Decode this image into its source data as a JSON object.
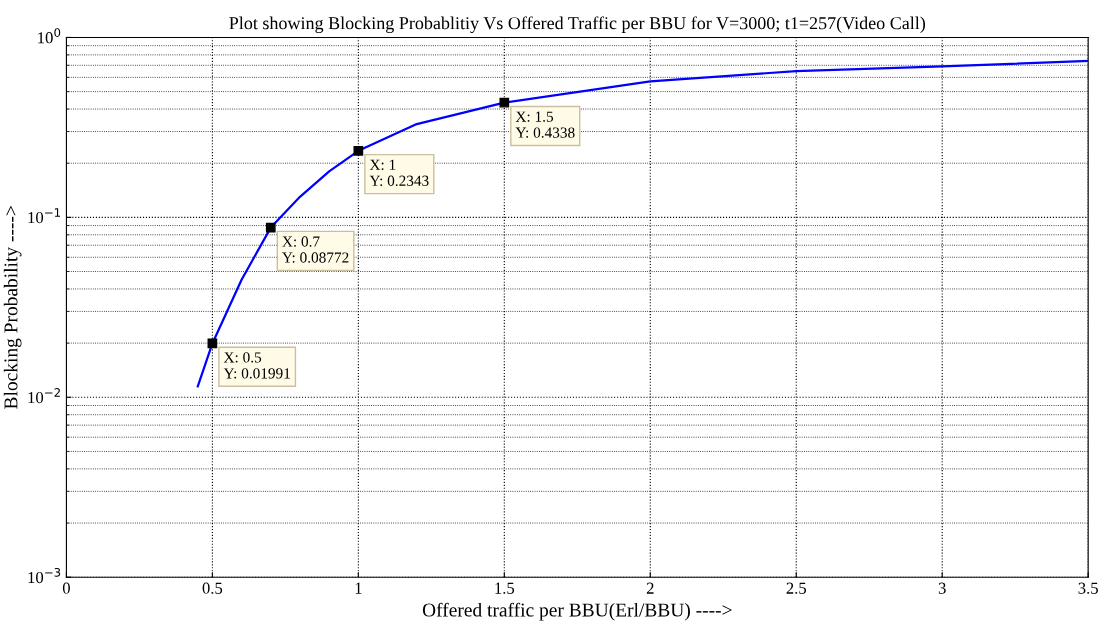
{
  "chart_data": {
    "type": "line",
    "title": "Plot showing Blocking Probablitiy Vs Offered Traffic per BBU for V=3000; t1=257(Video Call)",
    "xlabel": "Offered traffic per BBU(Erl/BBU) ---->",
    "ylabel": "Blocking Probability ---->",
    "series": [
      {
        "color": "#0000ff",
        "x": [
          0.45,
          0.5,
          0.6,
          0.7,
          0.8,
          0.9,
          1,
          1.2,
          1.5,
          2,
          2.5,
          3,
          3.5
        ],
        "values": [
          0.0115,
          0.01991,
          0.045,
          0.08772,
          0.13,
          0.18,
          0.2343,
          0.33,
          0.4338,
          0.57,
          0.65,
          0.69,
          0.74
        ]
      }
    ],
    "annotations": [
      {
        "text": "X: 0.5\nY: 0.01991",
        "x": 0.5,
        "y": 0.01991
      },
      {
        "text": "X: 0.7\nY: 0.08772",
        "x": 0.7,
        "y": 0.08772
      },
      {
        "text": "X: 1\nY: 0.2343",
        "x": 1,
        "y": 0.2343
      },
      {
        "text": "X: 1.5\nY: 0.4338",
        "x": 1.5,
        "y": 0.4338
      }
    ],
    "log": "y",
    "xlim": [
      0,
      3.5
    ],
    "ylim": [
      0.001,
      1
    ],
    "xticks": [
      0,
      0.5,
      1,
      1.5,
      2,
      2.5,
      3,
      3.5
    ],
    "yticks": [
      {
        "value": 0.001,
        "label": "10$^{−3}$"
      },
      {
        "value": 0.01,
        "label": "10$^{−2}$"
      },
      {
        "value": 0.1,
        "label": "10$^{−1}$"
      },
      {
        "value": 1,
        "label": "10$^{0}$"
      }
    ],
    "grid": true,
    "line_style": "solid",
    "marker": "none"
  }
}
